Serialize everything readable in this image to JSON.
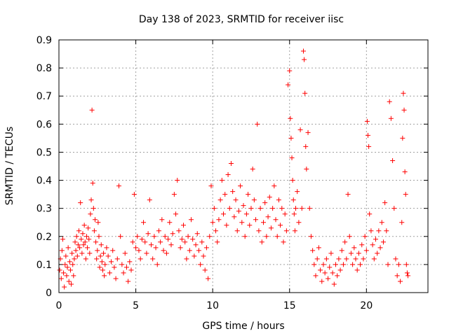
{
  "chart_data": {
    "type": "scatter",
    "title": "Day 138 of 2023, SRMTID for receiver iisc",
    "xlabel": "GPS time / hours",
    "ylabel": "SRMTID / TECUs",
    "xlim": [
      0,
      24
    ],
    "ylim": [
      0,
      0.9
    ],
    "xticks": [
      0,
      5,
      10,
      15,
      20
    ],
    "yticks": [
      0,
      0.1,
      0.2,
      0.3,
      0.4,
      0.5,
      0.6,
      0.7,
      0.8,
      0.9
    ],
    "marker": "+",
    "color": "#ff0000",
    "grid": true,
    "series": [
      {
        "name": "SRMTID",
        "points": [
          [
            0.05,
            0.08
          ],
          [
            0.1,
            0.12
          ],
          [
            0.15,
            0.05
          ],
          [
            0.2,
            0.15
          ],
          [
            0.25,
            0.19
          ],
          [
            0.3,
            0.07
          ],
          [
            0.35,
            0.02
          ],
          [
            0.4,
            0.1
          ],
          [
            0.45,
            0.13
          ],
          [
            0.5,
            0.06
          ],
          [
            0.55,
            0.09
          ],
          [
            0.6,
            0.16
          ],
          [
            0.65,
            0.04
          ],
          [
            0.7,
            0.11
          ],
          [
            0.75,
            0.08
          ],
          [
            0.8,
            0.03
          ],
          [
            0.85,
            0.14
          ],
          [
            0.9,
            0.1
          ],
          [
            0.95,
            0.06
          ],
          [
            1.0,
            0.12
          ],
          [
            1.05,
            0.18
          ],
          [
            1.1,
            0.15
          ],
          [
            1.15,
            0.2
          ],
          [
            1.2,
            0.13
          ],
          [
            1.25,
            0.17
          ],
          [
            1.3,
            0.22
          ],
          [
            1.35,
            0.16
          ],
          [
            1.4,
            0.32
          ],
          [
            1.45,
            0.19
          ],
          [
            1.5,
            0.14
          ],
          [
            1.55,
            0.21
          ],
          [
            1.6,
            0.17
          ],
          [
            1.65,
            0.24
          ],
          [
            1.7,
            0.18
          ],
          [
            1.75,
            0.12
          ],
          [
            1.8,
            0.2
          ],
          [
            1.85,
            0.16
          ],
          [
            1.9,
            0.23
          ],
          [
            1.95,
            0.19
          ],
          [
            2.0,
            0.14
          ],
          [
            2.05,
            0.28
          ],
          [
            2.1,
            0.33
          ],
          [
            2.15,
            0.65
          ],
          [
            2.2,
            0.39
          ],
          [
            2.25,
            0.3
          ],
          [
            2.3,
            0.22
          ],
          [
            2.35,
            0.26
          ],
          [
            2.4,
            0.18
          ],
          [
            2.45,
            0.12
          ],
          [
            2.5,
            0.15
          ],
          [
            2.55,
            0.25
          ],
          [
            2.6,
            0.2
          ],
          [
            2.65,
            0.09
          ],
          [
            2.7,
            0.13
          ],
          [
            2.75,
            0.17
          ],
          [
            2.8,
            0.11
          ],
          [
            2.85,
            0.08
          ],
          [
            2.9,
            0.14
          ],
          [
            2.95,
            0.06
          ],
          [
            3.0,
            0.1
          ],
          [
            3.1,
            0.16
          ],
          [
            3.2,
            0.13
          ],
          [
            3.3,
            0.07
          ],
          [
            3.4,
            0.11
          ],
          [
            3.5,
            0.15
          ],
          [
            3.6,
            0.09
          ],
          [
            3.7,
            0.05
          ],
          [
            3.8,
            0.12
          ],
          [
            3.9,
            0.38
          ],
          [
            4.0,
            0.2
          ],
          [
            4.1,
            0.1
          ],
          [
            4.2,
            0.07
          ],
          [
            4.3,
            0.14
          ],
          [
            4.4,
            0.09
          ],
          [
            4.5,
            0.04
          ],
          [
            4.6,
            0.11
          ],
          [
            4.7,
            0.08
          ],
          [
            4.8,
            0.18
          ],
          [
            4.9,
            0.35
          ],
          [
            5.0,
            0.16
          ],
          [
            5.1,
            0.2
          ],
          [
            5.2,
            0.15
          ],
          [
            5.3,
            0.12
          ],
          [
            5.4,
            0.19
          ],
          [
            5.5,
            0.25
          ],
          [
            5.6,
            0.18
          ],
          [
            5.7,
            0.14
          ],
          [
            5.8,
            0.21
          ],
          [
            5.9,
            0.33
          ],
          [
            6.0,
            0.17
          ],
          [
            6.1,
            0.12
          ],
          [
            6.2,
            0.2
          ],
          [
            6.3,
            0.16
          ],
          [
            6.4,
            0.1
          ],
          [
            6.5,
            0.22
          ],
          [
            6.6,
            0.18
          ],
          [
            6.7,
            0.26
          ],
          [
            6.8,
            0.15
          ],
          [
            6.9,
            0.2
          ],
          [
            7.0,
            0.14
          ],
          [
            7.1,
            0.19
          ],
          [
            7.2,
            0.25
          ],
          [
            7.3,
            0.17
          ],
          [
            7.4,
            0.21
          ],
          [
            7.5,
            0.35
          ],
          [
            7.6,
            0.28
          ],
          [
            7.7,
            0.4
          ],
          [
            7.8,
            0.22
          ],
          [
            7.9,
            0.16
          ],
          [
            8.0,
            0.19
          ],
          [
            8.1,
            0.24
          ],
          [
            8.2,
            0.18
          ],
          [
            8.3,
            0.12
          ],
          [
            8.4,
            0.2
          ],
          [
            8.5,
            0.15
          ],
          [
            8.6,
            0.26
          ],
          [
            8.7,
            0.19
          ],
          [
            8.8,
            0.13
          ],
          [
            8.9,
            0.17
          ],
          [
            9.0,
            0.21
          ],
          [
            9.1,
            0.15
          ],
          [
            9.2,
            0.1
          ],
          [
            9.3,
            0.18
          ],
          [
            9.4,
            0.13
          ],
          [
            9.5,
            0.08
          ],
          [
            9.6,
            0.16
          ],
          [
            9.7,
            0.05
          ],
          [
            9.8,
            0.2
          ],
          [
            9.9,
            0.38
          ],
          [
            10.0,
            0.25
          ],
          [
            10.1,
            0.3
          ],
          [
            10.2,
            0.22
          ],
          [
            10.3,
            0.18
          ],
          [
            10.4,
            0.26
          ],
          [
            10.5,
            0.33
          ],
          [
            10.6,
            0.4
          ],
          [
            10.7,
            0.28
          ],
          [
            10.8,
            0.35
          ],
          [
            10.9,
            0.24
          ],
          [
            11.0,
            0.42
          ],
          [
            11.1,
            0.3
          ],
          [
            11.2,
            0.46
          ],
          [
            11.3,
            0.36
          ],
          [
            11.4,
            0.27
          ],
          [
            11.5,
            0.33
          ],
          [
            11.6,
            0.22
          ],
          [
            11.7,
            0.29
          ],
          [
            11.8,
            0.38
          ],
          [
            11.9,
            0.25
          ],
          [
            12.0,
            0.31
          ],
          [
            12.1,
            0.2
          ],
          [
            12.2,
            0.28
          ],
          [
            12.3,
            0.35
          ],
          [
            12.4,
            0.24
          ],
          [
            12.5,
            0.3
          ],
          [
            12.6,
            0.44
          ],
          [
            12.7,
            0.33
          ],
          [
            12.8,
            0.26
          ],
          [
            12.9,
            0.6
          ],
          [
            13.0,
            0.22
          ],
          [
            13.1,
            0.3
          ],
          [
            13.2,
            0.18
          ],
          [
            13.3,
            0.25
          ],
          [
            13.4,
            0.32
          ],
          [
            13.5,
            0.2
          ],
          [
            13.6,
            0.27
          ],
          [
            13.7,
            0.34
          ],
          [
            13.8,
            0.23
          ],
          [
            13.9,
            0.3
          ],
          [
            14.0,
            0.38
          ],
          [
            14.1,
            0.26
          ],
          [
            14.2,
            0.2
          ],
          [
            14.3,
            0.33
          ],
          [
            14.4,
            0.24
          ],
          [
            14.5,
            0.3
          ],
          [
            14.6,
            0.18
          ],
          [
            14.7,
            0.28
          ],
          [
            14.8,
            0.22
          ],
          [
            14.9,
            0.74
          ],
          [
            15.0,
            0.79
          ],
          [
            15.05,
            0.62
          ],
          [
            15.1,
            0.55
          ],
          [
            15.15,
            0.48
          ],
          [
            15.2,
            0.4
          ],
          [
            15.25,
            0.33
          ],
          [
            15.3,
            0.28
          ],
          [
            15.35,
            0.22
          ],
          [
            15.4,
            0.3
          ],
          [
            15.5,
            0.36
          ],
          [
            15.6,
            0.25
          ],
          [
            15.7,
            0.58
          ],
          [
            15.8,
            0.3
          ],
          [
            15.9,
            0.86
          ],
          [
            15.95,
            0.83
          ],
          [
            16.0,
            0.71
          ],
          [
            16.05,
            0.52
          ],
          [
            16.1,
            0.44
          ],
          [
            16.2,
            0.57
          ],
          [
            16.3,
            0.3
          ],
          [
            16.4,
            0.2
          ],
          [
            16.5,
            0.15
          ],
          [
            16.6,
            0.1
          ],
          [
            16.7,
            0.06
          ],
          [
            16.8,
            0.12
          ],
          [
            16.9,
            0.16
          ],
          [
            17.0,
            0.08
          ],
          [
            17.1,
            0.04
          ],
          [
            17.2,
            0.1
          ],
          [
            17.3,
            0.07
          ],
          [
            17.4,
            0.12
          ],
          [
            17.5,
            0.05
          ],
          [
            17.6,
            0.09
          ],
          [
            17.7,
            0.14
          ],
          [
            17.8,
            0.07
          ],
          [
            17.9,
            0.03
          ],
          [
            18.0,
            0.1
          ],
          [
            18.1,
            0.06
          ],
          [
            18.2,
            0.12
          ],
          [
            18.3,
            0.08
          ],
          [
            18.4,
            0.15
          ],
          [
            18.5,
            0.1
          ],
          [
            18.6,
            0.18
          ],
          [
            18.7,
            0.12
          ],
          [
            18.8,
            0.35
          ],
          [
            18.9,
            0.2
          ],
          [
            19.0,
            0.14
          ],
          [
            19.1,
            0.1
          ],
          [
            19.2,
            0.16
          ],
          [
            19.3,
            0.12
          ],
          [
            19.4,
            0.08
          ],
          [
            19.5,
            0.14
          ],
          [
            19.6,
            0.1
          ],
          [
            19.7,
            0.17
          ],
          [
            19.8,
            0.12
          ],
          [
            19.9,
            0.2
          ],
          [
            20.0,
            0.15
          ],
          [
            20.05,
            0.61
          ],
          [
            20.1,
            0.56
          ],
          [
            20.15,
            0.52
          ],
          [
            20.2,
            0.28
          ],
          [
            20.3,
            0.22
          ],
          [
            20.4,
            0.17
          ],
          [
            20.5,
            0.12
          ],
          [
            20.6,
            0.19
          ],
          [
            20.7,
            0.14
          ],
          [
            20.8,
            0.22
          ],
          [
            20.9,
            0.16
          ],
          [
            21.0,
            0.25
          ],
          [
            21.1,
            0.18
          ],
          [
            21.2,
            0.32
          ],
          [
            21.3,
            0.22
          ],
          [
            21.4,
            0.1
          ],
          [
            21.5,
            0.68
          ],
          [
            21.6,
            0.62
          ],
          [
            21.7,
            0.47
          ],
          [
            21.8,
            0.3
          ],
          [
            21.9,
            0.12
          ],
          [
            22.0,
            0.06
          ],
          [
            22.1,
            0.1
          ],
          [
            22.2,
            0.04
          ],
          [
            22.3,
            0.25
          ],
          [
            22.35,
            0.55
          ],
          [
            22.4,
            0.71
          ],
          [
            22.45,
            0.65
          ],
          [
            22.5,
            0.43
          ],
          [
            22.55,
            0.35
          ],
          [
            22.6,
            0.1
          ],
          [
            22.65,
            0.07
          ],
          [
            22.7,
            0.06
          ]
        ]
      }
    ]
  }
}
